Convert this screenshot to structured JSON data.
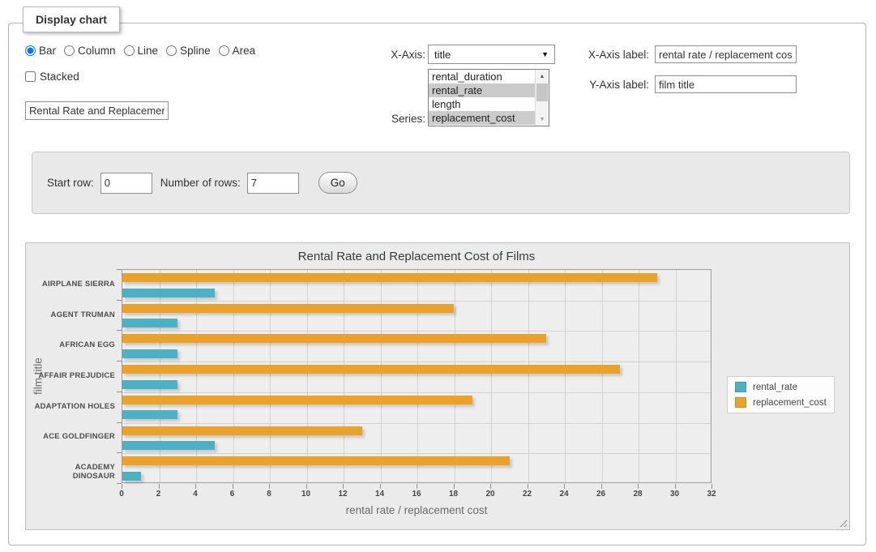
{
  "window": {
    "legend_title": "Display chart"
  },
  "controls": {
    "chart_type": {
      "options": [
        "Bar",
        "Column",
        "Line",
        "Spline",
        "Area"
      ],
      "selected": "Bar"
    },
    "stacked": {
      "label": "Stacked",
      "checked": false
    },
    "chart_title_input": {
      "value": "Rental Rate and Replacement Cost of Films"
    },
    "x_axis": {
      "label": "X-Axis:",
      "selected_option": "title"
    },
    "series_select": {
      "label": "Series:",
      "options": [
        {
          "label": "rental_duration",
          "selected": false
        },
        {
          "label": "rental_rate",
          "selected": true
        },
        {
          "label": "length",
          "selected": false
        },
        {
          "label": "replacement_cost",
          "selected": true
        }
      ]
    },
    "x_axis_label_field": {
      "label": "X-Axis label:",
      "value": "rental rate / replacement cost"
    },
    "y_axis_label_field": {
      "label": "Y-Axis label:",
      "value": "film title"
    }
  },
  "row_controls": {
    "start_row": {
      "label": "Start row:",
      "value": "0"
    },
    "number_of_rows": {
      "label": "Number of rows:",
      "value": "7"
    },
    "go_button_label": "Go"
  },
  "chart_data": {
    "type": "bar",
    "orientation": "horizontal",
    "title": "Rental Rate and Replacement Cost of Films",
    "xlabel": "rental rate / replacement cost",
    "ylabel": "film title",
    "categories": [
      "AIRPLANE SIERRA",
      "AGENT TRUMAN",
      "AFRICAN EGG",
      "AFFAIR PREJUDICE",
      "ADAPTATION HOLES",
      "ACE GOLDFINGER",
      "ACADEMY DINOSAUR"
    ],
    "series": [
      {
        "name": "rental_rate",
        "color": "#4bb2c5",
        "values": [
          4.99,
          2.99,
          2.99,
          2.99,
          2.99,
          4.99,
          0.99
        ]
      },
      {
        "name": "replacement_cost",
        "color": "#eaa228",
        "values": [
          28.99,
          17.99,
          22.99,
          26.99,
          18.99,
          12.99,
          20.99
        ]
      }
    ],
    "xlim": [
      0,
      32
    ],
    "xtick_step": 2,
    "grid": true,
    "legend_position": "right"
  }
}
